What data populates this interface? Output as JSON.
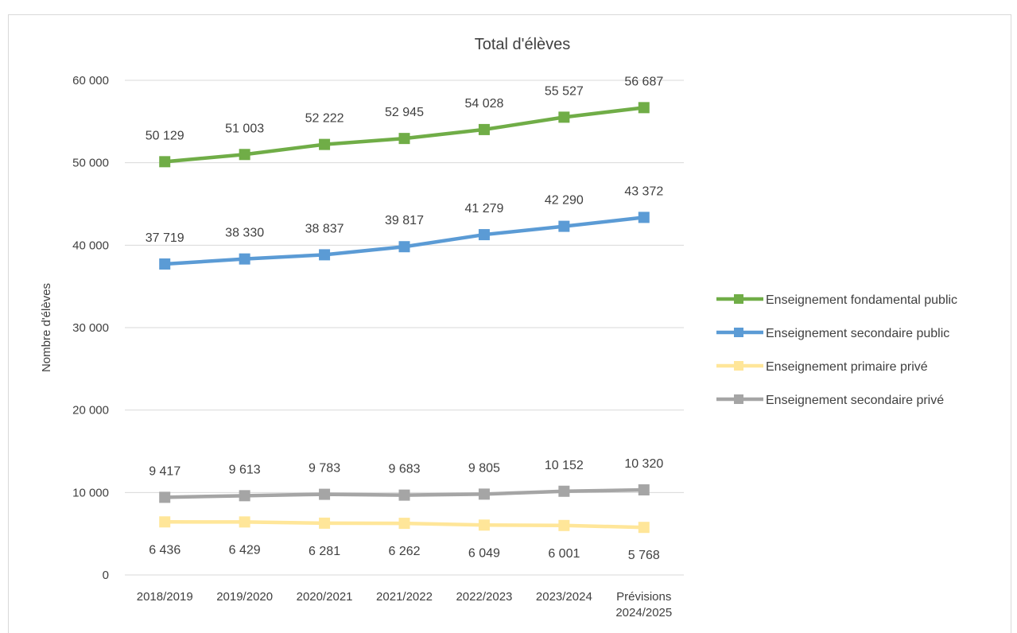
{
  "chart_data": {
    "type": "line",
    "title": "Total d'élèves",
    "xlabel": "",
    "ylabel": "Nombre d'élèves",
    "ylim": [
      0,
      60000
    ],
    "yticks": [
      0,
      10000,
      20000,
      30000,
      40000,
      50000,
      60000
    ],
    "ytick_labels": [
      "0",
      "10 000",
      "20 000",
      "30 000",
      "40 000",
      "50 000",
      "60 000"
    ],
    "grid": true,
    "legend_position": "right",
    "categories": [
      [
        "2018/2019"
      ],
      [
        "2019/2020"
      ],
      [
        "2020/2021"
      ],
      [
        "2021/2022"
      ],
      [
        "2022/2023"
      ],
      [
        "2023/2024"
      ],
      [
        "Prévisions",
        "2024/2025"
      ]
    ],
    "series": [
      {
        "name": "Enseignement fondamental public",
        "color": "#70ad47",
        "values": [
          50129,
          51003,
          52222,
          52945,
          54028,
          55527,
          56687
        ],
        "labels": [
          "50 129",
          "51 003",
          "52 222",
          "52 945",
          "54 028",
          "55 527",
          "56 687"
        ],
        "label_position": "above"
      },
      {
        "name": "Enseignement secondaire public",
        "color": "#5b9bd5",
        "values": [
          37719,
          38330,
          38837,
          39817,
          41279,
          42290,
          43372
        ],
        "labels": [
          "37 719",
          "38 330",
          "38 837",
          "39 817",
          "41 279",
          "42 290",
          "43 372"
        ],
        "label_position": "above"
      },
      {
        "name": "Enseignement primaire privé",
        "color": "#ffe699",
        "values": [
          6436,
          6429,
          6281,
          6262,
          6049,
          6001,
          5768
        ],
        "labels": [
          "6 436",
          "6 429",
          "6 281",
          "6 262",
          "6 049",
          "6 001",
          "5 768"
        ],
        "label_position": "below"
      },
      {
        "name": "Enseignement secondaire privé",
        "color": "#a5a5a5",
        "values": [
          9417,
          9613,
          9783,
          9683,
          9805,
          10152,
          10320
        ],
        "labels": [
          "9 417",
          "9 613",
          "9 783",
          "9 683",
          "9 805",
          "10 152",
          "10 320"
        ],
        "label_position": "above"
      }
    ]
  }
}
